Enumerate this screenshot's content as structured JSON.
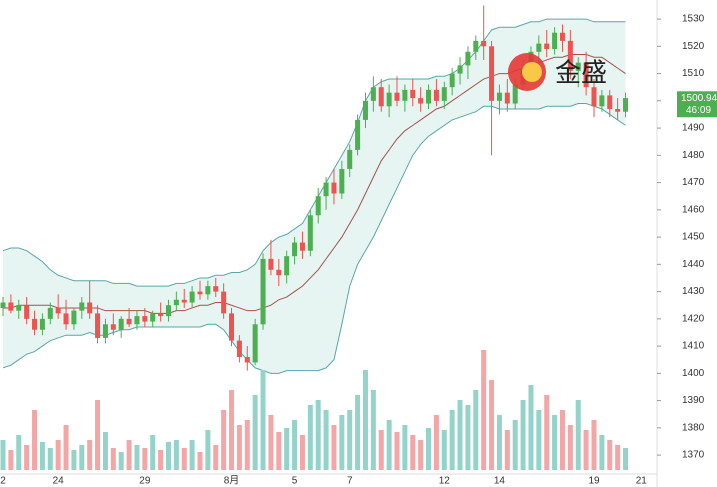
{
  "chart_data": {
    "type": "candlestick",
    "categories": [
      "2",
      null,
      null,
      null,
      null,
      null,
      null,
      "24",
      null,
      null,
      null,
      null,
      null,
      null,
      null,
      null,
      null,
      null,
      "29",
      null,
      null,
      null,
      null,
      null,
      null,
      null,
      null,
      null,
      null,
      "8月",
      null,
      null,
      null,
      null,
      null,
      null,
      null,
      "5",
      null,
      null,
      null,
      null,
      null,
      null,
      "7",
      null,
      null,
      null,
      null,
      null,
      null,
      null,
      null,
      null,
      null,
      null,
      "12",
      null,
      null,
      null,
      null,
      null,
      null,
      "14",
      null,
      null,
      null,
      null,
      null,
      null,
      null,
      null,
      null,
      null,
      null,
      "19",
      null,
      null,
      null,
      null,
      null,
      "21"
    ],
    "open": [
      1424,
      1426,
      1423,
      1425,
      1420,
      1416,
      1420,
      1424,
      1422,
      1418,
      1423,
      1426,
      1422,
      1413,
      1418,
      1416,
      1420,
      1418,
      1421,
      1419,
      1422,
      1421,
      1425,
      1427,
      1426,
      1430,
      1429,
      1432,
      1430,
      1422,
      1412,
      1406,
      1404,
      1418,
      1442,
      1438,
      1436,
      1443,
      1448,
      1445,
      1458,
      1465,
      1470,
      1466,
      1475,
      1482,
      1493,
      1500,
      1505,
      1498,
      1503,
      1500,
      1504,
      1501,
      1499,
      1504,
      1500,
      1505,
      1510,
      1513,
      1518,
      1522,
      1520,
      1500,
      1503,
      1499,
      1506,
      1512,
      1518,
      1521,
      1519,
      1525,
      1522,
      1511,
      1514,
      1505,
      1498,
      1502,
      1497,
      1496,
      null,
      null
    ],
    "high": [
      1428,
      1429,
      1427,
      1428,
      1423,
      1422,
      1426,
      1429,
      1427,
      1424,
      1428,
      1434,
      1425,
      1420,
      1422,
      1421,
      1424,
      1423,
      1424,
      1423,
      1426,
      1427,
      1430,
      1431,
      1432,
      1434,
      1434,
      1435,
      1433,
      1424,
      1414,
      1410,
      1420,
      1444,
      1449,
      1442,
      1445,
      1450,
      1452,
      1460,
      1468,
      1472,
      1475,
      1478,
      1484,
      1495,
      1503,
      1509,
      1508,
      1506,
      1509,
      1506,
      1508,
      1505,
      1506,
      1508,
      1507,
      1512,
      1516,
      1520,
      1524,
      1535,
      1522,
      1506,
      1508,
      1508,
      1515,
      1520,
      1524,
      1526,
      1527,
      1528,
      1526,
      1516,
      1518,
      1508,
      1504,
      1504,
      1501,
      1503,
      null,
      null
    ],
    "low": [
      1421,
      1422,
      1420,
      1418,
      1414,
      1414,
      1418,
      1420,
      1416,
      1416,
      1420,
      1420,
      1411,
      1411,
      1414,
      1413,
      1417,
      1416,
      1417,
      1417,
      1419,
      1419,
      1423,
      1424,
      1424,
      1427,
      1427,
      1428,
      1420,
      1410,
      1404,
      1401,
      1403,
      1416,
      1436,
      1432,
      1433,
      1440,
      1442,
      1443,
      1455,
      1460,
      1462,
      1464,
      1472,
      1480,
      1490,
      1496,
      1496,
      1494,
      1498,
      1496,
      1498,
      1496,
      1497,
      1498,
      1497,
      1502,
      1506,
      1508,
      1515,
      1515,
      1480,
      1495,
      1496,
      1497,
      1504,
      1510,
      1514,
      1516,
      1517,
      1518,
      1508,
      1505,
      1502,
      1494,
      1496,
      1494,
      1493,
      1494,
      null,
      null
    ],
    "close": [
      1426,
      1423,
      1425,
      1420,
      1416,
      1420,
      1424,
      1422,
      1418,
      1423,
      1426,
      1422,
      1413,
      1418,
      1416,
      1420,
      1418,
      1421,
      1419,
      1422,
      1421,
      1425,
      1427,
      1426,
      1430,
      1429,
      1432,
      1430,
      1422,
      1412,
      1406,
      1404,
      1418,
      1442,
      1438,
      1436,
      1443,
      1448,
      1445,
      1458,
      1465,
      1470,
      1466,
      1475,
      1482,
      1493,
      1500,
      1505,
      1498,
      1503,
      1500,
      1504,
      1501,
      1499,
      1504,
      1500,
      1505,
      1510,
      1513,
      1518,
      1522,
      1520,
      1500,
      1503,
      1499,
      1506,
      1512,
      1518,
      1521,
      1519,
      1525,
      1522,
      1511,
      1514,
      1505,
      1498,
      1502,
      1497,
      1496,
      1501,
      null,
      null
    ],
    "band_upper": [
      1445,
      1446,
      1446,
      1445,
      1443,
      1441,
      1438,
      1436,
      1435,
      1434,
      1434,
      1434,
      1434,
      1434,
      1433,
      1433,
      1433,
      1432,
      1432,
      1432,
      1432,
      1432,
      1433,
      1433,
      1434,
      1435,
      1435,
      1436,
      1436,
      1437,
      1437,
      1438,
      1440,
      1445,
      1448,
      1450,
      1451,
      1453,
      1455,
      1460,
      1465,
      1470,
      1475,
      1480,
      1485,
      1492,
      1500,
      1505,
      1507,
      1508,
      1508,
      1508,
      1508,
      1508,
      1508,
      1509,
      1509,
      1510,
      1512,
      1515,
      1518,
      1522,
      1526,
      1527,
      1527,
      1527,
      1528,
      1529,
      1529,
      1530,
      1530,
      1530,
      1530,
      1530,
      1530,
      1529,
      1529,
      1529,
      1529,
      1529,
      null,
      null
    ],
    "band_middle": [
      1424,
      1424,
      1425,
      1425,
      1425,
      1425,
      1425,
      1424,
      1424,
      1424,
      1424,
      1424,
      1424,
      1423,
      1423,
      1423,
      1423,
      1423,
      1423,
      1422,
      1422,
      1422,
      1423,
      1423,
      1424,
      1425,
      1425,
      1426,
      1426,
      1425,
      1424,
      1423,
      1423,
      1424,
      1425,
      1427,
      1428,
      1430,
      1432,
      1435,
      1438,
      1442,
      1446,
      1450,
      1455,
      1460,
      1466,
      1472,
      1478,
      1482,
      1486,
      1489,
      1491,
      1493,
      1495,
      1497,
      1498,
      1500,
      1502,
      1504,
      1506,
      1508,
      1509,
      1510,
      1510,
      1511,
      1512,
      1513,
      1514,
      1515,
      1516,
      1516,
      1517,
      1517,
      1517,
      1516,
      1516,
      1514,
      1512,
      1510,
      null,
      null
    ],
    "band_lower": [
      1402,
      1403,
      1405,
      1407,
      1408,
      1410,
      1412,
      1413,
      1414,
      1414,
      1414,
      1415,
      1414,
      1414,
      1415,
      1416,
      1416,
      1417,
      1417,
      1417,
      1417,
      1417,
      1417,
      1417,
      1417,
      1417,
      1418,
      1418,
      1416,
      1412,
      1408,
      1405,
      1402,
      1401,
      1400,
      1400,
      1401,
      1401,
      1401,
      1401,
      1401,
      1402,
      1405,
      1418,
      1432,
      1440,
      1445,
      1450,
      1456,
      1462,
      1468,
      1474,
      1480,
      1484,
      1487,
      1489,
      1491,
      1493,
      1494,
      1495,
      1496,
      1498,
      1498,
      1497,
      1497,
      1497,
      1497,
      1497,
      1497,
      1498,
      1498,
      1498,
      1498,
      1499,
      1499,
      1498,
      1497,
      1495,
      1493,
      1491,
      null,
      null
    ],
    "volume": [
      30,
      20,
      35,
      25,
      60,
      28,
      22,
      30,
      45,
      20,
      25,
      30,
      70,
      38,
      22,
      18,
      30,
      25,
      22,
      35,
      20,
      28,
      30,
      22,
      30,
      18,
      40,
      25,
      60,
      80,
      45,
      50,
      75,
      100,
      55,
      38,
      42,
      50,
      35,
      65,
      70,
      60,
      45,
      55,
      60,
      75,
      100,
      80,
      40,
      50,
      38,
      45,
      35,
      30,
      42,
      55,
      40,
      60,
      70,
      65,
      80,
      120,
      90,
      55,
      40,
      50,
      70,
      85,
      60,
      75,
      55,
      60,
      45,
      70,
      40,
      50,
      35,
      30,
      25,
      22,
      null,
      null
    ],
    "up_color": "#4caf50",
    "down_color": "#ef5350",
    "up_volume_color": "#93d3c9",
    "down_volume_color": "#f4a6a6",
    "band_color": "#5aa6a6",
    "band_fill": "#e6f4f2",
    "middle_color": "#a5524c",
    "ylim": [
      1366,
      1537
    ],
    "yticks": [
      1370,
      1380,
      1390,
      1400,
      1410,
      1420,
      1430,
      1440,
      1450,
      1460,
      1470,
      1480,
      1490,
      1500,
      1510,
      1520,
      1530
    ],
    "grid": false,
    "last_price": 1500.94,
    "countdown": "46:09",
    "watermark": "金盛"
  }
}
